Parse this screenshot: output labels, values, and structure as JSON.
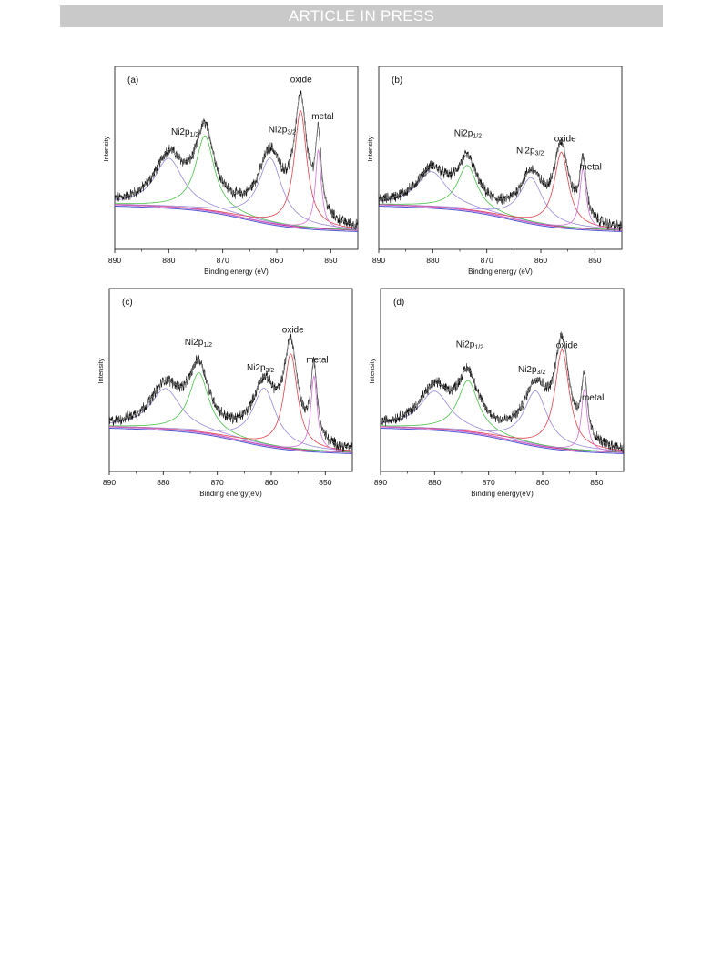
{
  "banner": "ARTICLE IN PRESS",
  "colors": {
    "spectrum": "#111111",
    "envelope": "#777777",
    "background": "#cc2e9c",
    "background_alt": "#4b54d0",
    "ni2p12_components": "#48c248",
    "oxide_components": "#e0404a",
    "metal_components": "#d070d8",
    "satellite_components": "#9a88d8"
  },
  "chart_data": [
    {
      "type": "line",
      "panel_label": "(a)",
      "xlabel": "Binding energy (eV)",
      "ylabel": "Intensity",
      "xlim": [
        890,
        845
      ],
      "x_ticks": [
        890,
        880,
        870,
        860,
        850
      ],
      "grid": false,
      "reversed_x": true,
      "annotations": [
        {
          "text": "Ni2p",
          "sub": "1/2",
          "x": 877
        },
        {
          "text": "Ni2p",
          "sub": "3/2",
          "x": 859
        },
        {
          "text": "oxide",
          "x": 855.5
        },
        {
          "text": "metal",
          "x": 851.5
        }
      ],
      "peaks": [
        {
          "name": "satellite 2p1/2",
          "center": 880.0,
          "height": 0.36,
          "width": 3.2
        },
        {
          "name": "Ni2p1/2",
          "center": 873.3,
          "height": 0.55,
          "width": 2.1
        },
        {
          "name": "satellite 2p3/2",
          "center": 861.2,
          "height": 0.48,
          "width": 2.6
        },
        {
          "name": "oxide",
          "center": 855.6,
          "height": 0.86,
          "width": 1.4
        },
        {
          "name": "metal",
          "center": 852.3,
          "height": 0.58,
          "width": 0.65
        }
      ]
    },
    {
      "type": "line",
      "panel_label": "(b)",
      "xlabel": "Binding energy (eV)",
      "ylabel": "Intensity",
      "xlim": [
        890,
        845
      ],
      "x_ticks": [
        890,
        880,
        870,
        860,
        850
      ],
      "grid": false,
      "reversed_x": true,
      "annotations": [
        {
          "text": "Ni2p",
          "sub": "1/2",
          "x": 873.5
        },
        {
          "text": "Ni2p",
          "sub": "3/2",
          "x": 862
        },
        {
          "text": "oxide",
          "x": 855.5
        },
        {
          "text": "metal",
          "x": 850.8
        }
      ],
      "peaks": [
        {
          "name": "satellite 2p1/2",
          "center": 880.2,
          "height": 0.26,
          "width": 3.4
        },
        {
          "name": "Ni2p1/2",
          "center": 873.6,
          "height": 0.33,
          "width": 2.2
        },
        {
          "name": "satellite 2p3/2",
          "center": 861.8,
          "height": 0.33,
          "width": 2.6
        },
        {
          "name": "oxide",
          "center": 856.2,
          "height": 0.55,
          "width": 1.6
        },
        {
          "name": "metal",
          "center": 852.2,
          "height": 0.44,
          "width": 0.7
        }
      ]
    },
    {
      "type": "line",
      "panel_label": "(c)",
      "xlabel": "Binding energy(eV)",
      "ylabel": "Intensity",
      "xlim": [
        890,
        845
      ],
      "x_ticks": [
        890,
        880,
        870,
        860,
        850
      ],
      "grid": false,
      "reversed_x": true,
      "annotations": [
        {
          "text": "Ni2p",
          "sub": "1/2",
          "x": 873.5
        },
        {
          "text": "Ni2p",
          "sub": "3/2",
          "x": 862
        },
        {
          "text": "oxide",
          "x": 856
        },
        {
          "text": "metal",
          "x": 851.5
        }
      ],
      "peaks": [
        {
          "name": "satellite 2p1/2",
          "center": 879.6,
          "height": 0.3,
          "width": 3.4
        },
        {
          "name": "Ni2p1/2",
          "center": 873.4,
          "height": 0.44,
          "width": 2.2
        },
        {
          "name": "satellite 2p3/2",
          "center": 861.3,
          "height": 0.42,
          "width": 2.6
        },
        {
          "name": "oxide",
          "center": 856.4,
          "height": 0.7,
          "width": 1.5
        },
        {
          "name": "metal",
          "center": 852.1,
          "height": 0.55,
          "width": 0.7
        }
      ]
    },
    {
      "type": "line",
      "panel_label": "(d)",
      "xlabel": "Binding energy(eV)",
      "ylabel": "Intensity",
      "xlim": [
        890,
        845
      ],
      "x_ticks": [
        890,
        880,
        870,
        860,
        850
      ],
      "grid": false,
      "reversed_x": true,
      "annotations": [
        {
          "text": "Ni2p",
          "sub": "1/2",
          "x": 873.5
        },
        {
          "text": "Ni2p",
          "sub": "3/2",
          "x": 862
        },
        {
          "text": "oxide",
          "x": 855.5
        },
        {
          "text": "metal",
          "x": 850.7
        }
      ],
      "peaks": [
        {
          "name": "satellite 2p1/2",
          "center": 880.0,
          "height": 0.28,
          "width": 3.4
        },
        {
          "name": "Ni2p1/2",
          "center": 873.8,
          "height": 0.38,
          "width": 2.3
        },
        {
          "name": "satellite 2p3/2",
          "center": 861.3,
          "height": 0.4,
          "width": 2.6
        },
        {
          "name": "oxide",
          "center": 856.4,
          "height": 0.73,
          "width": 1.6
        },
        {
          "name": "metal",
          "center": 852.3,
          "height": 0.45,
          "width": 0.65
        }
      ]
    }
  ]
}
